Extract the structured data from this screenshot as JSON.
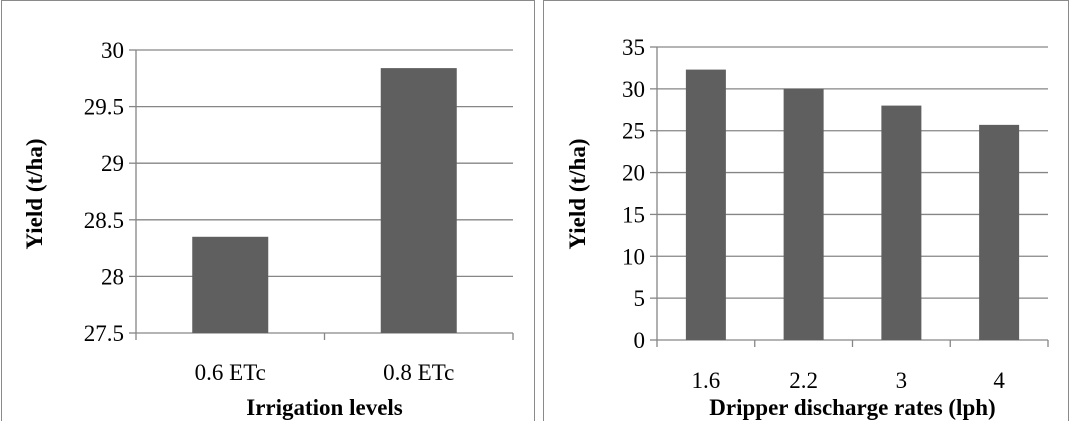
{
  "chart_data": [
    {
      "type": "bar",
      "categories": [
        "0.6 ETc",
        "0.8 ETc"
      ],
      "values": [
        28.35,
        29.84
      ],
      "xlabel": "Irrigation levels",
      "ylabel": "Yield (t/ha)",
      "ylim": [
        27.5,
        30
      ],
      "yticks": [
        "27.5",
        "28",
        "28.5",
        "29",
        "29.5",
        "30"
      ],
      "bar_color": "#5f5f5f",
      "grid": true
    },
    {
      "type": "bar",
      "categories": [
        "1.6",
        "2.2",
        "3",
        "4"
      ],
      "values": [
        32.3,
        30.0,
        28.0,
        25.7
      ],
      "xlabel": "Dripper discharge rates (lph)",
      "ylabel": "Yield (t/ha)",
      "ylim": [
        0,
        35
      ],
      "yticks": [
        "0",
        "5",
        "10",
        "15",
        "20",
        "25",
        "30",
        "35"
      ],
      "bar_color": "#5f5f5f",
      "grid": true
    }
  ]
}
